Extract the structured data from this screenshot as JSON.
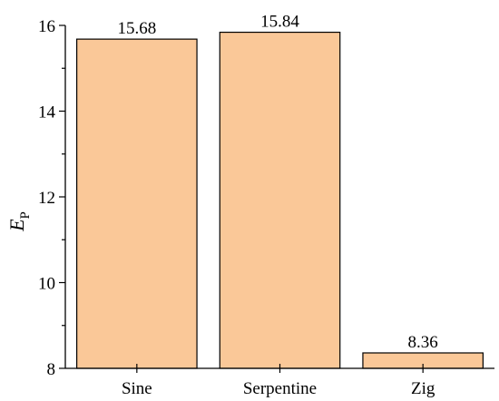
{
  "chart_data": {
    "type": "bar",
    "categories": [
      "Sine",
      "Serpentine",
      "Zig"
    ],
    "values": [
      15.68,
      15.84,
      8.36
    ],
    "data_labels": [
      "15.68",
      "15.84",
      "8.36"
    ],
    "ylabel": {
      "main": "E",
      "subscript": "P"
    },
    "xlabel": "",
    "ylim": [
      8,
      16
    ],
    "y_ticks": [
      8,
      10,
      12,
      14,
      16
    ],
    "y_tick_labels": [
      "8",
      "10",
      "12",
      "14",
      "16"
    ],
    "bar_color": "#FAC898",
    "grid": false,
    "legend": "none"
  }
}
